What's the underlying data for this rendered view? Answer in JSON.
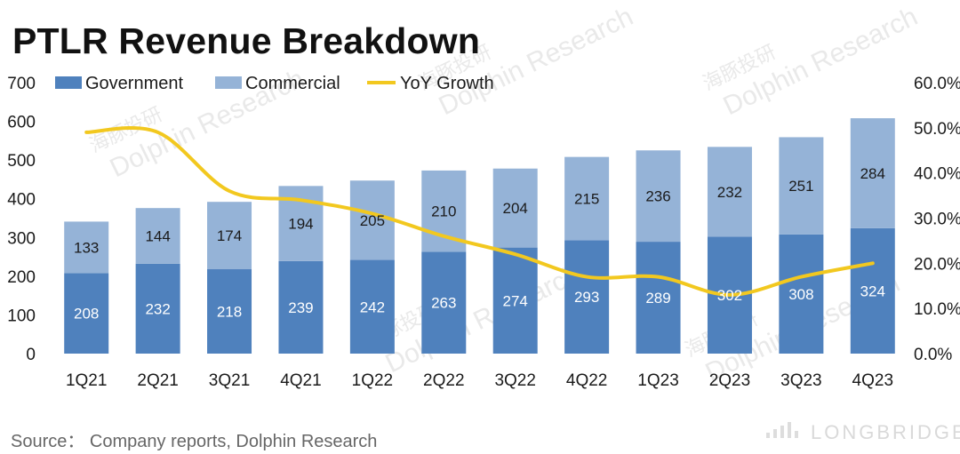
{
  "title": "PTLR Revenue Breakdown",
  "source": "Source： Company reports, Dolphin Research",
  "watermarks": {
    "text": "Dolphin Research",
    "chinese": "海豚投研",
    "brand": "LONGBRIDGE"
  },
  "colors": {
    "government": "#4f81bd",
    "commercial": "#95b3d7",
    "growth_line": "#f2c81f",
    "axis_text": "#1a1a1a"
  },
  "chart_data": {
    "type": "bar",
    "stacked": true,
    "categories": [
      "1Q21",
      "2Q21",
      "3Q21",
      "4Q21",
      "1Q22",
      "2Q22",
      "3Q22",
      "4Q22",
      "1Q23",
      "2Q23",
      "3Q23",
      "4Q23"
    ],
    "series": [
      {
        "name": "Government",
        "type": "bar",
        "axis": "left",
        "color": "#4f81bd",
        "label_color": "#ffffff",
        "values": [
          208,
          232,
          218,
          239,
          242,
          263,
          274,
          293,
          289,
          302,
          308,
          324
        ]
      },
      {
        "name": "Commercial",
        "type": "bar",
        "axis": "left",
        "color": "#95b3d7",
        "label_color": "#1a1a1a",
        "values": [
          133,
          144,
          174,
          194,
          205,
          210,
          204,
          215,
          236,
          232,
          251,
          284
        ]
      },
      {
        "name": "YoY Growth",
        "type": "line",
        "axis": "right",
        "color": "#f2c81f",
        "smooth": true,
        "values": [
          0.49,
          0.49,
          0.36,
          0.34,
          0.31,
          0.26,
          0.22,
          0.17,
          0.17,
          0.13,
          0.17,
          0.2
        ]
      }
    ],
    "y_left": {
      "min": 0,
      "max": 700,
      "ticks": [
        "0",
        "100",
        "200",
        "300",
        "400",
        "500",
        "600",
        "700"
      ]
    },
    "y_right": {
      "min": 0,
      "max": 0.6,
      "ticks": [
        "0.0%",
        "10.0%",
        "20.0%",
        "30.0%",
        "40.0%",
        "50.0%",
        "60.0%"
      ]
    },
    "legend": {
      "position": "top-left",
      "entries": [
        "Government",
        "Commercial",
        "YoY Growth"
      ]
    },
    "grid": false
  }
}
